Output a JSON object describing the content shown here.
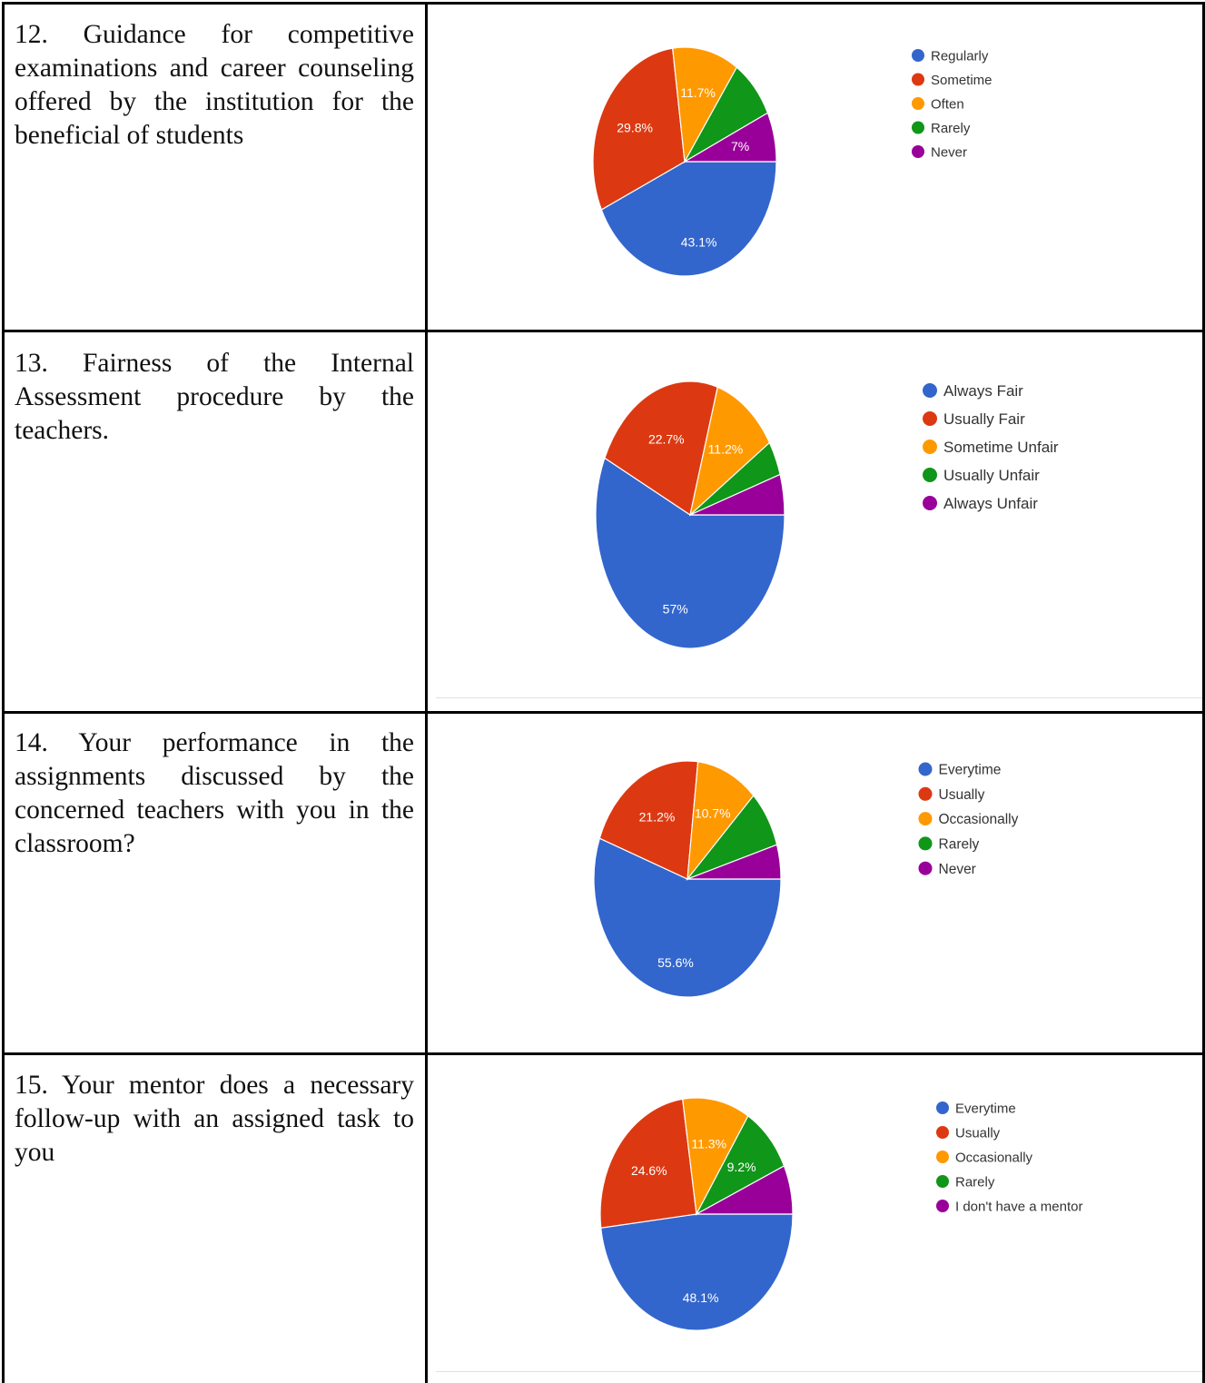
{
  "rows": [
    {
      "question": "12. Guidance for competitive examinations and career counseling offered by the institution for the beneficial of students",
      "chart_data": {
        "type": "pie",
        "labels": [
          "Regularly",
          "Sometime",
          "Often",
          "Rarely",
          "Never"
        ],
        "values": [
          43.1,
          29.8,
          11.7,
          8.4,
          7.0
        ],
        "data_labels": [
          "43.1%",
          "29.8%",
          "11.7%",
          "",
          "7%"
        ],
        "colors": [
          "#3366cc",
          "#dc3912",
          "#ff9900",
          "#109618",
          "#990099"
        ],
        "legend_position": "right"
      }
    },
    {
      "question": "13. Fairness of the Internal Assessment procedure by the teachers.",
      "chart_data": {
        "type": "pie",
        "labels": [
          "Always Fair",
          "Usually Fair",
          "Sometime Unfair",
          "Usually Unfair",
          "Always Unfair"
        ],
        "values": [
          57,
          22.7,
          11.2,
          4.2,
          4.9
        ],
        "data_labels": [
          "57%",
          "22.7%",
          "11.2%",
          "",
          ""
        ],
        "colors": [
          "#3366cc",
          "#dc3912",
          "#ff9900",
          "#109618",
          "#990099"
        ],
        "legend_position": "right"
      }
    },
    {
      "question": "14. Your performance in the assignments discussed by the concerned teachers with you in the classroom?",
      "chart_data": {
        "type": "pie",
        "labels": [
          "Everytime",
          "Usually",
          "Occasionally",
          "Rarely",
          "Never"
        ],
        "values": [
          55.6,
          21.2,
          10.7,
          7.8,
          4.7
        ],
        "data_labels": [
          "55.6%",
          "21.2%",
          "10.7%",
          "",
          ""
        ],
        "colors": [
          "#3366cc",
          "#dc3912",
          "#ff9900",
          "#109618",
          "#990099"
        ],
        "legend_position": "right"
      }
    },
    {
      "question": "15. Your mentor does a necessary follow-up with an assigned task to you",
      "chart_data": {
        "type": "pie",
        "labels": [
          "Everytime",
          "Usually",
          "Occasionally",
          "Rarely",
          "I don't have a mentor"
        ],
        "values": [
          48.1,
          24.6,
          11.3,
          9.2,
          6.8
        ],
        "data_labels": [
          "48.1%",
          "24.6%",
          "11.3%",
          "9.2%",
          ""
        ],
        "colors": [
          "#3366cc",
          "#dc3912",
          "#ff9900",
          "#109618",
          "#990099"
        ],
        "legend_position": "right"
      }
    }
  ]
}
